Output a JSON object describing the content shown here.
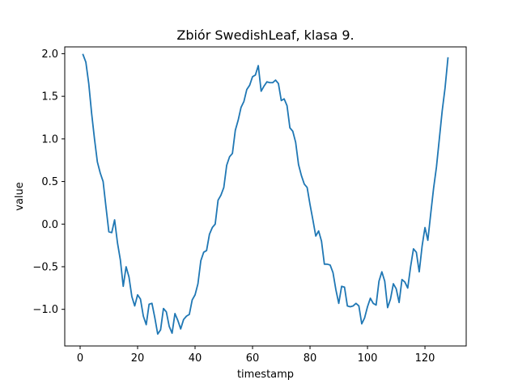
{
  "chart_data": {
    "type": "line",
    "title": "Zbiór SwedishLeaf, klasa 9.",
    "xlabel": "timestamp",
    "ylabel": "value",
    "xlim": [
      -5.35,
      134.35
    ],
    "ylim": [
      -1.43,
      2.08
    ],
    "xticks": [
      0,
      20,
      40,
      60,
      80,
      100,
      120
    ],
    "xtick_labels": [
      "0",
      "20",
      "40",
      "60",
      "80",
      "100",
      "120"
    ],
    "yticks": [
      -1.0,
      -0.5,
      0.0,
      0.5,
      1.0,
      1.5,
      2.0
    ],
    "ytick_labels": [
      "−1.0",
      "−0.5",
      "0.0",
      "0.5",
      "1.0",
      "1.5",
      "2.0"
    ],
    "grid": false,
    "series": [
      {
        "color": "#1f77b4",
        "x": [
          1,
          2,
          3,
          4,
          5,
          6,
          7,
          8,
          9,
          10,
          11,
          12,
          13,
          14,
          15,
          16,
          17,
          18,
          19,
          20,
          21,
          22,
          23,
          24,
          25,
          26,
          27,
          28,
          29,
          30,
          31,
          32,
          33,
          34,
          35,
          36,
          37,
          38,
          39,
          40,
          41,
          42,
          43,
          44,
          45,
          46,
          47,
          48,
          49,
          50,
          51,
          52,
          53,
          54,
          55,
          56,
          57,
          58,
          59,
          60,
          61,
          62,
          63,
          64,
          65,
          66,
          67,
          68,
          69,
          70,
          71,
          72,
          73,
          74,
          75,
          76,
          77,
          78,
          79,
          80,
          81,
          82,
          83,
          84,
          85,
          86,
          87,
          88,
          89,
          90,
          91,
          92,
          93,
          94,
          95,
          96,
          97,
          98,
          99,
          100,
          101,
          102,
          103,
          104,
          105,
          106,
          107,
          108,
          109,
          110,
          111,
          112,
          113,
          114,
          115,
          116,
          117,
          118,
          119,
          120,
          121,
          122,
          123,
          124,
          125,
          126,
          127,
          128
        ],
        "y": [
          1.99,
          1.9,
          1.65,
          1.3,
          1.0,
          0.73,
          0.6,
          0.5,
          0.2,
          -0.09,
          -0.1,
          0.05,
          -0.22,
          -0.42,
          -0.73,
          -0.5,
          -0.62,
          -0.85,
          -0.96,
          -0.83,
          -0.88,
          -1.08,
          -1.18,
          -0.94,
          -0.93,
          -1.1,
          -1.29,
          -1.24,
          -0.99,
          -1.03,
          -1.2,
          -1.28,
          -1.05,
          -1.13,
          -1.23,
          -1.12,
          -1.08,
          -1.06,
          -0.89,
          -0.83,
          -0.7,
          -0.43,
          -0.33,
          -0.31,
          -0.12,
          -0.04,
          0.0,
          0.28,
          0.34,
          0.43,
          0.69,
          0.79,
          0.83,
          1.1,
          1.22,
          1.37,
          1.44,
          1.58,
          1.63,
          1.73,
          1.75,
          1.86,
          1.56,
          1.62,
          1.67,
          1.66,
          1.66,
          1.69,
          1.65,
          1.45,
          1.47,
          1.39,
          1.13,
          1.09,
          0.96,
          0.7,
          0.57,
          0.47,
          0.43,
          0.23,
          0.05,
          -0.14,
          -0.08,
          -0.2,
          -0.47,
          -0.47,
          -0.48,
          -0.57,
          -0.77,
          -0.93,
          -0.73,
          -0.74,
          -0.96,
          -0.97,
          -0.96,
          -0.93,
          -0.96,
          -1.17,
          -1.1,
          -0.97,
          -0.87,
          -0.93,
          -0.95,
          -0.67,
          -0.56,
          -0.67,
          -0.98,
          -0.88,
          -0.7,
          -0.76,
          -0.92,
          -0.65,
          -0.68,
          -0.75,
          -0.5,
          -0.29,
          -0.33,
          -0.56,
          -0.26,
          -0.04,
          -0.19,
          0.12,
          0.42,
          0.67,
          1.0,
          1.33,
          1.6,
          1.95
        ]
      }
    ]
  }
}
